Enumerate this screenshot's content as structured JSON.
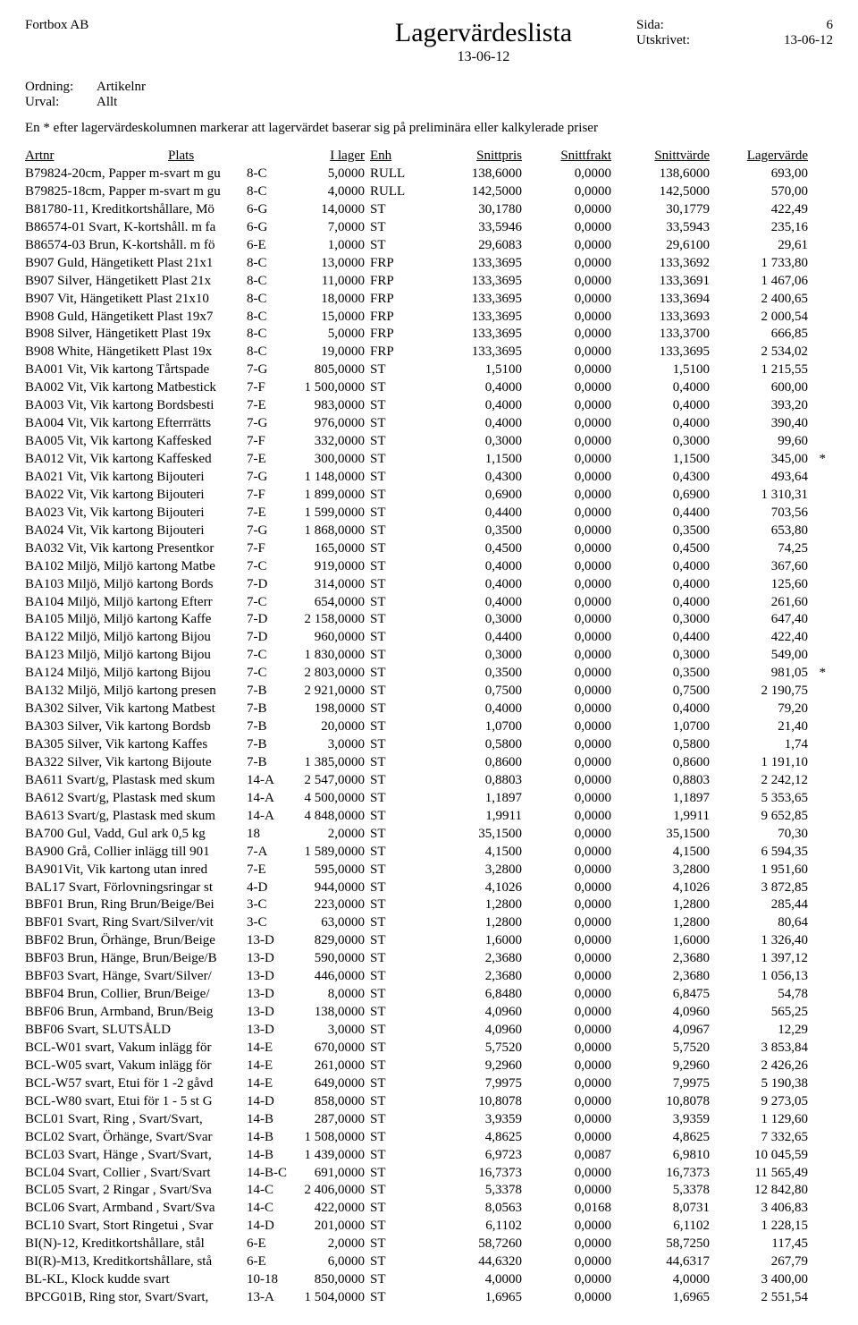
{
  "header": {
    "company": "Fortbox AB",
    "sida_label": "Sida:",
    "sida_value": "6",
    "title": "Lagervärdeslista",
    "date": "13-06-12",
    "utskrivet_label": "Utskrivet:",
    "utskrivet_value": "13-06-12",
    "ordning_label": "Ordning:",
    "ordning_value": "Artikelnr",
    "urval_label": "Urval:",
    "urval_value": "Allt",
    "note": "En * efter lagervärdeskolumnen markerar att lagervärdet baserar sig på preliminära eller kalkylerade priser"
  },
  "columns": {
    "artnr": "Artnr",
    "plats": "Plats",
    "ilager": "I lager",
    "enh": "Enh",
    "snittpris": "Snittpris",
    "snittfrakt": "Snittfrakt",
    "snittvarde": "Snittvärde",
    "lagervarde": "Lagervärde"
  },
  "rows": [
    {
      "d": "B79824-20cm,  Papper m-svart m gu",
      "p": "8-C",
      "il": "5,0000",
      "e": "RULL",
      "sp": "138,6000",
      "sf": "0,0000",
      "sv": "138,6000",
      "lv": "693,00",
      "s": ""
    },
    {
      "d": "B79825-18cm,  Papper m-svart m gu",
      "p": "8-C",
      "il": "4,0000",
      "e": "RULL",
      "sp": "142,5000",
      "sf": "0,0000",
      "sv": "142,5000",
      "lv": "570,00",
      "s": ""
    },
    {
      "d": "B81780-11,  Kreditkortshållare, Mö",
      "p": "6-G",
      "il": "14,0000",
      "e": "ST",
      "sp": "30,1780",
      "sf": "0,0000",
      "sv": "30,1779",
      "lv": "422,49",
      "s": ""
    },
    {
      "d": "B86574-01 Svart,  K-kortshåll. m fa",
      "p": "6-G",
      "il": "7,0000",
      "e": "ST",
      "sp": "33,5946",
      "sf": "0,0000",
      "sv": "33,5943",
      "lv": "235,16",
      "s": ""
    },
    {
      "d": "B86574-03 Brun,  K-kortshåll. m fö",
      "p": "6-E",
      "il": "1,0000",
      "e": "ST",
      "sp": "29,6083",
      "sf": "0,0000",
      "sv": "29,6100",
      "lv": "29,61",
      "s": ""
    },
    {
      "d": "B907 Guld,  Hängetikett Plast 21x1",
      "p": "8-C",
      "il": "13,0000",
      "e": "FRP",
      "sp": "133,3695",
      "sf": "0,0000",
      "sv": "133,3692",
      "lv": "1 733,80",
      "s": ""
    },
    {
      "d": "B907 Silver,  Hängetikett Plast 21x",
      "p": "8-C",
      "il": "11,0000",
      "e": "FRP",
      "sp": "133,3695",
      "sf": "0,0000",
      "sv": "133,3691",
      "lv": "1 467,06",
      "s": ""
    },
    {
      "d": "B907 Vit,  Hängetikett Plast 21x10",
      "p": "8-C",
      "il": "18,0000",
      "e": "FRP",
      "sp": "133,3695",
      "sf": "0,0000",
      "sv": "133,3694",
      "lv": "2 400,65",
      "s": ""
    },
    {
      "d": "B908 Guld,  Hängetikett Plast 19x7",
      "p": "8-C",
      "il": "15,0000",
      "e": "FRP",
      "sp": "133,3695",
      "sf": "0,0000",
      "sv": "133,3693",
      "lv": "2 000,54",
      "s": ""
    },
    {
      "d": "B908 Silver,  Hängetikett Plast 19x",
      "p": "8-C",
      "il": "5,0000",
      "e": "FRP",
      "sp": "133,3695",
      "sf": "0,0000",
      "sv": "133,3700",
      "lv": "666,85",
      "s": ""
    },
    {
      "d": "B908 White,  Hängetikett Plast 19x",
      "p": "8-C",
      "il": "19,0000",
      "e": "FRP",
      "sp": "133,3695",
      "sf": "0,0000",
      "sv": "133,3695",
      "lv": "2 534,02",
      "s": ""
    },
    {
      "d": "BA001 Vit,  Vik kartong Tårtspade",
      "p": "7-G",
      "il": "805,0000",
      "e": "ST",
      "sp": "1,5100",
      "sf": "0,0000",
      "sv": "1,5100",
      "lv": "1 215,55",
      "s": ""
    },
    {
      "d": "BA002 Vit,  Vik kartong Matbestick",
      "p": "7-F",
      "il": "1 500,0000",
      "e": "ST",
      "sp": "0,4000",
      "sf": "0,0000",
      "sv": "0,4000",
      "lv": "600,00",
      "s": ""
    },
    {
      "d": "BA003 Vit,  Vik kartong Bordsbesti",
      "p": "7-E",
      "il": "983,0000",
      "e": "ST",
      "sp": "0,4000",
      "sf": "0,0000",
      "sv": "0,4000",
      "lv": "393,20",
      "s": ""
    },
    {
      "d": "BA004 Vit,  Vik kartong Efterrrätts",
      "p": "7-G",
      "il": "976,0000",
      "e": "ST",
      "sp": "0,4000",
      "sf": "0,0000",
      "sv": "0,4000",
      "lv": "390,40",
      "s": ""
    },
    {
      "d": "BA005 Vit,  Vik kartong Kaffesked",
      "p": "7-F",
      "il": "332,0000",
      "e": "ST",
      "sp": "0,3000",
      "sf": "0,0000",
      "sv": "0,3000",
      "lv": "99,60",
      "s": ""
    },
    {
      "d": "BA012 Vit,  Vik kartong Kaffesked",
      "p": "7-E",
      "il": "300,0000",
      "e": "ST",
      "sp": "1,1500",
      "sf": "0,0000",
      "sv": "1,1500",
      "lv": "345,00",
      "s": "*"
    },
    {
      "d": "BA021 Vit,  Vik kartong Bijouteri",
      "p": "7-G",
      "il": "1 148,0000",
      "e": "ST",
      "sp": "0,4300",
      "sf": "0,0000",
      "sv": "0,4300",
      "lv": "493,64",
      "s": ""
    },
    {
      "d": "BA022 Vit,  Vik kartong Bijouteri",
      "p": "7-F",
      "il": "1 899,0000",
      "e": "ST",
      "sp": "0,6900",
      "sf": "0,0000",
      "sv": "0,6900",
      "lv": "1 310,31",
      "s": ""
    },
    {
      "d": "BA023 Vit,  Vik kartong Bijouteri",
      "p": "7-E",
      "il": "1 599,0000",
      "e": "ST",
      "sp": "0,4400",
      "sf": "0,0000",
      "sv": "0,4400",
      "lv": "703,56",
      "s": ""
    },
    {
      "d": "BA024 Vit,  Vik kartong Bijouteri",
      "p": "7-G",
      "il": "1 868,0000",
      "e": "ST",
      "sp": "0,3500",
      "sf": "0,0000",
      "sv": "0,3500",
      "lv": "653,80",
      "s": ""
    },
    {
      "d": "BA032 Vit,  Vik kartong Presentkor",
      "p": "7-F",
      "il": "165,0000",
      "e": "ST",
      "sp": "0,4500",
      "sf": "0,0000",
      "sv": "0,4500",
      "lv": "74,25",
      "s": ""
    },
    {
      "d": "BA102 Miljö,  Miljö kartong Matbe",
      "p": "7-C",
      "il": "919,0000",
      "e": "ST",
      "sp": "0,4000",
      "sf": "0,0000",
      "sv": "0,4000",
      "lv": "367,60",
      "s": ""
    },
    {
      "d": "BA103 Miljö,  Miljö kartong Bords",
      "p": "7-D",
      "il": "314,0000",
      "e": "ST",
      "sp": "0,4000",
      "sf": "0,0000",
      "sv": "0,4000",
      "lv": "125,60",
      "s": ""
    },
    {
      "d": "BA104 Miljö,  Miljö kartong Efterr",
      "p": "7-C",
      "il": "654,0000",
      "e": "ST",
      "sp": "0,4000",
      "sf": "0,0000",
      "sv": "0,4000",
      "lv": "261,60",
      "s": ""
    },
    {
      "d": "BA105 Miljö,  Miljö kartong Kaffe",
      "p": "7-D",
      "il": "2 158,0000",
      "e": "ST",
      "sp": "0,3000",
      "sf": "0,0000",
      "sv": "0,3000",
      "lv": "647,40",
      "s": ""
    },
    {
      "d": "BA122 Miljö,  Miljö kartong Bijou",
      "p": "7-D",
      "il": "960,0000",
      "e": "ST",
      "sp": "0,4400",
      "sf": "0,0000",
      "sv": "0,4400",
      "lv": "422,40",
      "s": ""
    },
    {
      "d": "BA123 Miljö,  Miljö kartong Bijou",
      "p": "7-C",
      "il": "1 830,0000",
      "e": "ST",
      "sp": "0,3000",
      "sf": "0,0000",
      "sv": "0,3000",
      "lv": "549,00",
      "s": ""
    },
    {
      "d": "BA124 Miljö,  Miljö kartong Bijou",
      "p": "7-C",
      "il": "2 803,0000",
      "e": "ST",
      "sp": "0,3500",
      "sf": "0,0000",
      "sv": "0,3500",
      "lv": "981,05",
      "s": "*"
    },
    {
      "d": "BA132 Miljö,  Miljö kartong presen",
      "p": "7-B",
      "il": "2 921,0000",
      "e": "ST",
      "sp": "0,7500",
      "sf": "0,0000",
      "sv": "0,7500",
      "lv": "2 190,75",
      "s": ""
    },
    {
      "d": "BA302 Silver,  Vik kartong Matbest",
      "p": "7-B",
      "il": "198,0000",
      "e": "ST",
      "sp": "0,4000",
      "sf": "0,0000",
      "sv": "0,4000",
      "lv": "79,20",
      "s": ""
    },
    {
      "d": "BA303 Silver,  Vik kartong Bordsb",
      "p": "7-B",
      "il": "20,0000",
      "e": "ST",
      "sp": "1,0700",
      "sf": "0,0000",
      "sv": "1,0700",
      "lv": "21,40",
      "s": ""
    },
    {
      "d": "BA305 Silver,  Vik kartong Kaffes",
      "p": "7-B",
      "il": "3,0000",
      "e": "ST",
      "sp": "0,5800",
      "sf": "0,0000",
      "sv": "0,5800",
      "lv": "1,74",
      "s": ""
    },
    {
      "d": "BA322 Silver,  Vik kartong Bijoute",
      "p": "7-B",
      "il": "1 385,0000",
      "e": "ST",
      "sp": "0,8600",
      "sf": "0,0000",
      "sv": "0,8600",
      "lv": "1 191,10",
      "s": ""
    },
    {
      "d": "BA611 Svart/g,  Plastask med skum",
      "p": "14-A",
      "il": "2 547,0000",
      "e": "ST",
      "sp": "0,8803",
      "sf": "0,0000",
      "sv": "0,8803",
      "lv": "2 242,12",
      "s": ""
    },
    {
      "d": "BA612 Svart/g,  Plastask med skum",
      "p": "14-A",
      "il": "4 500,0000",
      "e": "ST",
      "sp": "1,1897",
      "sf": "0,0000",
      "sv": "1,1897",
      "lv": "5 353,65",
      "s": ""
    },
    {
      "d": "BA613 Svart/g,  Plastask med skum",
      "p": "14-A",
      "il": "4 848,0000",
      "e": "ST",
      "sp": "1,9911",
      "sf": "0,0000",
      "sv": "1,9911",
      "lv": "9 652,85",
      "s": ""
    },
    {
      "d": "BA700 Gul,  Vadd, Gul ark 0,5 kg",
      "p": "18",
      "il": "2,0000",
      "e": "ST",
      "sp": "35,1500",
      "sf": "0,0000",
      "sv": "35,1500",
      "lv": "70,30",
      "s": ""
    },
    {
      "d": "BA900 Grå,  Collier inlägg till 901",
      "p": "7-A",
      "il": "1 589,0000",
      "e": "ST",
      "sp": "4,1500",
      "sf": "0,0000",
      "sv": "4,1500",
      "lv": "6 594,35",
      "s": ""
    },
    {
      "d": "BA901Vit,  Vik kartong utan inred",
      "p": "7-E",
      "il": "595,0000",
      "e": "ST",
      "sp": "3,2800",
      "sf": "0,0000",
      "sv": "3,2800",
      "lv": "1 951,60",
      "s": ""
    },
    {
      "d": "BAL17 Svart,  Förlovningsringar st",
      "p": "4-D",
      "il": "944,0000",
      "e": "ST",
      "sp": "4,1026",
      "sf": "0,0000",
      "sv": "4,1026",
      "lv": "3 872,85",
      "s": ""
    },
    {
      "d": "BBF01 Brun,  Ring Brun/Beige/Bei",
      "p": "3-C",
      "il": "223,0000",
      "e": "ST",
      "sp": "1,2800",
      "sf": "0,0000",
      "sv": "1,2800",
      "lv": "285,44",
      "s": ""
    },
    {
      "d": "BBF01 Svart,  Ring Svart/Silver/vit",
      "p": "3-C",
      "il": "63,0000",
      "e": "ST",
      "sp": "1,2800",
      "sf": "0,0000",
      "sv": "1,2800",
      "lv": "80,64",
      "s": ""
    },
    {
      "d": "BBF02 Brun,  Örhänge, Brun/Beige",
      "p": "13-D",
      "il": "829,0000",
      "e": "ST",
      "sp": "1,6000",
      "sf": "0,0000",
      "sv": "1,6000",
      "lv": "1 326,40",
      "s": ""
    },
    {
      "d": "BBF03 Brun,  Hänge, Brun/Beige/B",
      "p": "13-D",
      "il": "590,0000",
      "e": "ST",
      "sp": "2,3680",
      "sf": "0,0000",
      "sv": "2,3680",
      "lv": "1 397,12",
      "s": ""
    },
    {
      "d": "BBF03 Svart,  Hänge, Svart/Silver/",
      "p": "13-D",
      "il": "446,0000",
      "e": "ST",
      "sp": "2,3680",
      "sf": "0,0000",
      "sv": "2,3680",
      "lv": "1 056,13",
      "s": ""
    },
    {
      "d": "BBF04 Brun,  Collier, Brun/Beige/",
      "p": "13-D",
      "il": "8,0000",
      "e": "ST",
      "sp": "6,8480",
      "sf": "0,0000",
      "sv": "6,8475",
      "lv": "54,78",
      "s": ""
    },
    {
      "d": "BBF06 Brun,  Armband, Brun/Beig",
      "p": "13-D",
      "il": "138,0000",
      "e": "ST",
      "sp": "4,0960",
      "sf": "0,0000",
      "sv": "4,0960",
      "lv": "565,25",
      "s": ""
    },
    {
      "d": "BBF06 Svart,  SLUTSÅLD",
      "p": "13-D",
      "il": "3,0000",
      "e": "ST",
      "sp": "4,0960",
      "sf": "0,0000",
      "sv": "4,0967",
      "lv": "12,29",
      "s": ""
    },
    {
      "d": "BCL-W01 svart,  Vakum inlägg för",
      "p": "14-E",
      "il": "670,0000",
      "e": "ST",
      "sp": "5,7520",
      "sf": "0,0000",
      "sv": "5,7520",
      "lv": "3 853,84",
      "s": ""
    },
    {
      "d": "BCL-W05 svart,  Vakum inlägg för",
      "p": "14-E",
      "il": "261,0000",
      "e": "ST",
      "sp": "9,2960",
      "sf": "0,0000",
      "sv": "9,2960",
      "lv": "2 426,26",
      "s": ""
    },
    {
      "d": "BCL-W57 svart,  Etui för 1 -2 gåvd",
      "p": "14-E",
      "il": "649,0000",
      "e": "ST",
      "sp": "7,9975",
      "sf": "0,0000",
      "sv": "7,9975",
      "lv": "5 190,38",
      "s": ""
    },
    {
      "d": "BCL-W80 svart,  Etui för 1 - 5 st G",
      "p": "14-D",
      "il": "858,0000",
      "e": "ST",
      "sp": "10,8078",
      "sf": "0,0000",
      "sv": "10,8078",
      "lv": "9 273,05",
      "s": ""
    },
    {
      "d": "BCL01 Svart,  Ring , Svart/Svart,",
      "p": "14-B",
      "il": "287,0000",
      "e": "ST",
      "sp": "3,9359",
      "sf": "0,0000",
      "sv": "3,9359",
      "lv": "1 129,60",
      "s": ""
    },
    {
      "d": "BCL02 Svart,  Örhänge, Svart/Svar",
      "p": "14-B",
      "il": "1 508,0000",
      "e": "ST",
      "sp": "4,8625",
      "sf": "0,0000",
      "sv": "4,8625",
      "lv": "7 332,65",
      "s": ""
    },
    {
      "d": "BCL03 Svart,  Hänge , Svart/Svart,",
      "p": "14-B",
      "il": "1 439,0000",
      "e": "ST",
      "sp": "6,9723",
      "sf": "0,0087",
      "sv": "6,9810",
      "lv": "10 045,59",
      "s": ""
    },
    {
      "d": "BCL04 Svart,  Collier , Svart/Svart",
      "p": "14-B-C",
      "il": "691,0000",
      "e": "ST",
      "sp": "16,7373",
      "sf": "0,0000",
      "sv": "16,7373",
      "lv": "11 565,49",
      "s": ""
    },
    {
      "d": "BCL05 Svart,  2 Ringar , Svart/Sva",
      "p": "14-C",
      "il": "2 406,0000",
      "e": "ST",
      "sp": "5,3378",
      "sf": "0,0000",
      "sv": "5,3378",
      "lv": "12 842,80",
      "s": ""
    },
    {
      "d": "BCL06 Svart,  Armband , Svart/Sva",
      "p": "14-C",
      "il": "422,0000",
      "e": "ST",
      "sp": "8,0563",
      "sf": "0,0168",
      "sv": "8,0731",
      "lv": "3 406,83",
      "s": ""
    },
    {
      "d": "BCL10 Svart,  Stort Ringetui , Svar",
      "p": "14-D",
      "il": "201,0000",
      "e": "ST",
      "sp": "6,1102",
      "sf": "0,0000",
      "sv": "6,1102",
      "lv": "1 228,15",
      "s": ""
    },
    {
      "d": "BI(N)-12,  Kreditkortshållare, stål",
      "p": "6-E",
      "il": "2,0000",
      "e": "ST",
      "sp": "58,7260",
      "sf": "0,0000",
      "sv": "58,7250",
      "lv": "117,45",
      "s": ""
    },
    {
      "d": "BI(R)-M13,  Kreditkortshållare, stå",
      "p": "6-E",
      "il": "6,0000",
      "e": "ST",
      "sp": "44,6320",
      "sf": "0,0000",
      "sv": "44,6317",
      "lv": "267,79",
      "s": ""
    },
    {
      "d": "BL-KL,  Klock kudde svart",
      "p": "10-18",
      "il": "850,0000",
      "e": "ST",
      "sp": "4,0000",
      "sf": "0,0000",
      "sv": "4,0000",
      "lv": "3 400,00",
      "s": ""
    },
    {
      "d": "BPCG01B,  Ring stor, Svart/Svart,",
      "p": "13-A",
      "il": "1 504,0000",
      "e": "ST",
      "sp": "1,6965",
      "sf": "0,0000",
      "sv": "1,6965",
      "lv": "2 551,54",
      "s": ""
    }
  ]
}
